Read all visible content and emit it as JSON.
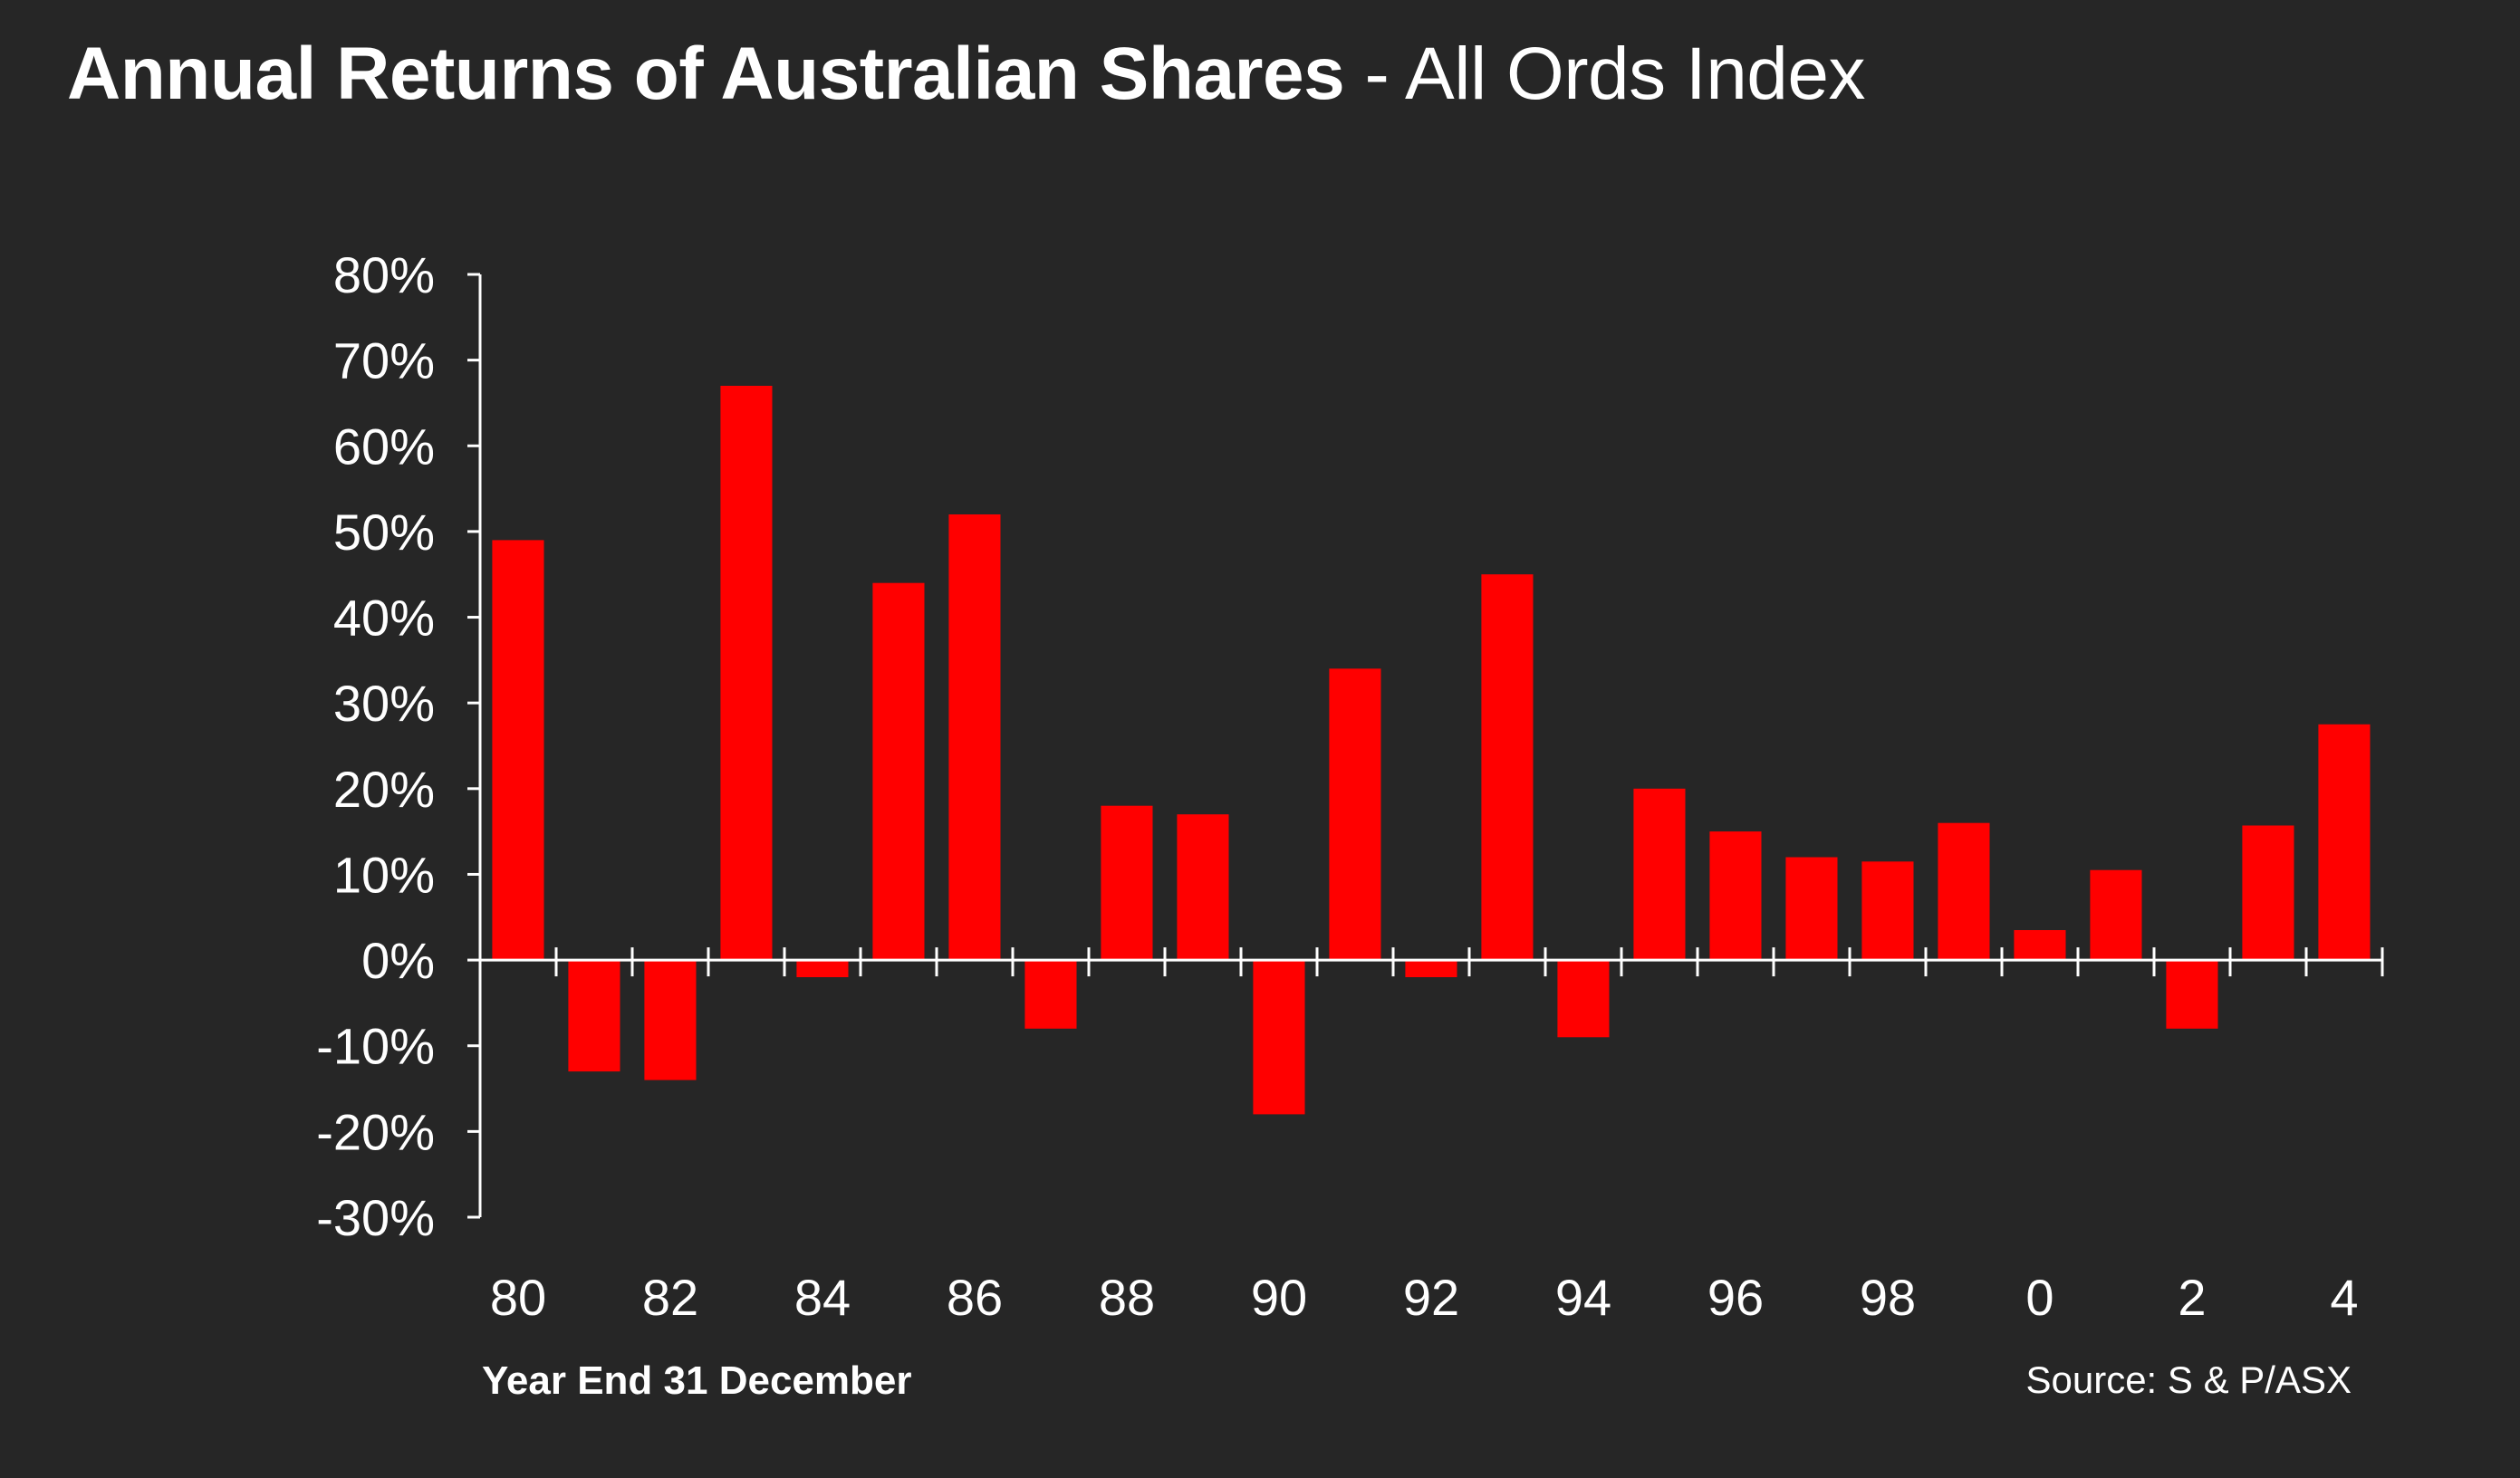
{
  "title": {
    "bold": "Annual Returns of Australian Shares",
    "rest": " - All Ords Index"
  },
  "xlabel": "Year End 31 December",
  "source": "Source: S & P/ASX",
  "colors": {
    "background": "#262626",
    "bar": "#ff0000",
    "axis": "#ffffff",
    "text": "#ffffff"
  },
  "chart_data": {
    "type": "bar",
    "title": "Annual Returns of Australian Shares - All Ords Index",
    "xlabel": "Year End 31 December",
    "ylabel": "",
    "ylim": [
      -30,
      80
    ],
    "grid": false,
    "y_ticks": [
      "-30%",
      "-20%",
      "-10%",
      "0%",
      "10%",
      "20%",
      "30%",
      "40%",
      "50%",
      "60%",
      "70%",
      "80%"
    ],
    "y_tick_values": [
      -30,
      -20,
      -10,
      0,
      10,
      20,
      30,
      40,
      50,
      60,
      70,
      80
    ],
    "x_tick_labels": [
      "80",
      "82",
      "84",
      "86",
      "88",
      "90",
      "92",
      "94",
      "96",
      "98",
      "0",
      "2",
      "4"
    ],
    "categories": [
      "1980",
      "1981",
      "1982",
      "1983",
      "1984",
      "1985",
      "1986",
      "1987",
      "1988",
      "1989",
      "1990",
      "1991",
      "1992",
      "1993",
      "1994",
      "1995",
      "1996",
      "1997",
      "1998",
      "1999",
      "2000",
      "2001",
      "2002",
      "2003",
      "2004"
    ],
    "values": [
      49,
      -13,
      -14,
      67,
      -2,
      44,
      52,
      -8,
      18,
      17,
      -18,
      34,
      -2,
      45,
      -9,
      20,
      15,
      12,
      11.5,
      16,
      3.5,
      10.5,
      -8,
      15.7,
      27.5
    ]
  }
}
